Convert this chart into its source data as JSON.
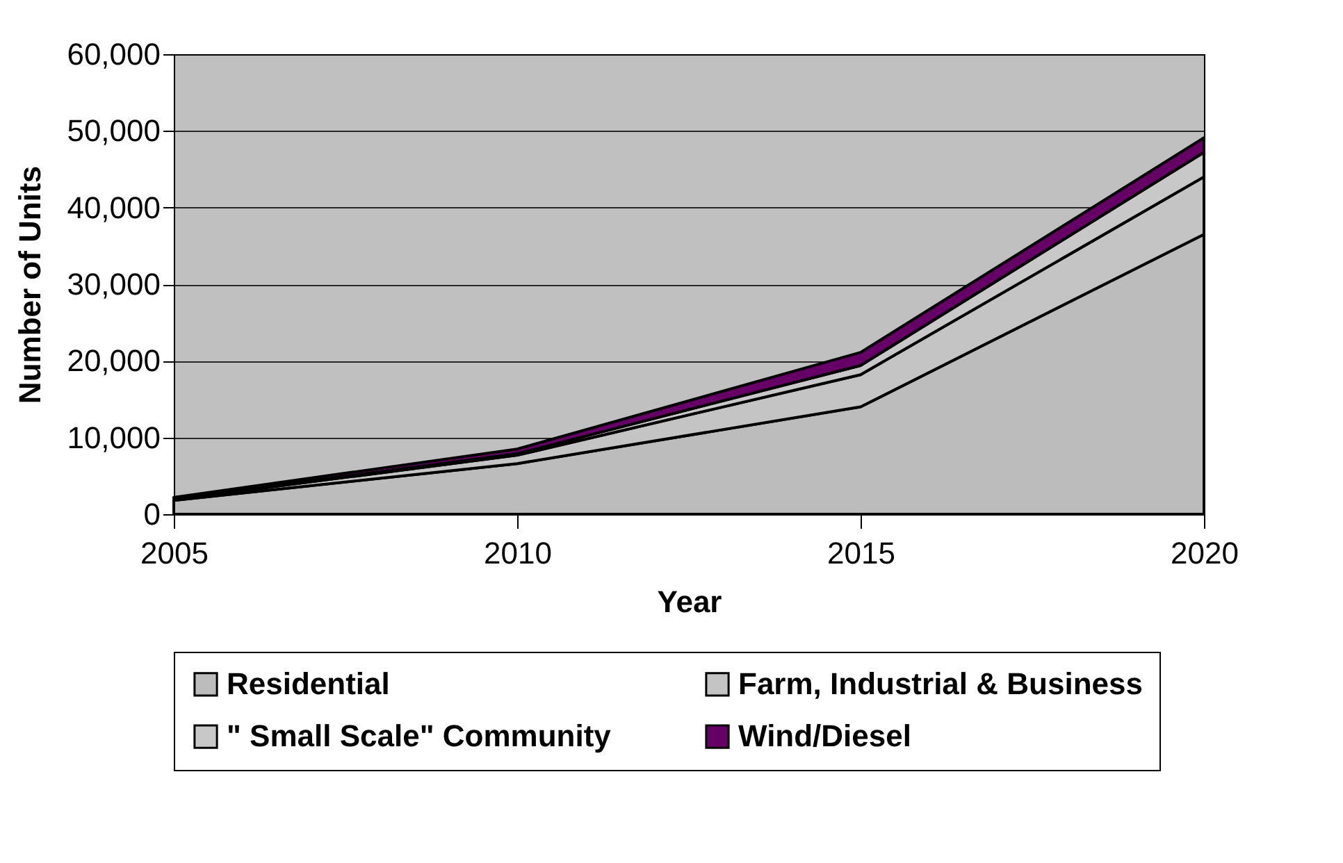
{
  "chart_data": {
    "type": "area",
    "stacked": true,
    "xlabel": "Year",
    "ylabel": "Number of Units",
    "x": [
      2005,
      2010,
      2015,
      2020
    ],
    "xlim": [
      2005,
      2020
    ],
    "xticks": [
      2005,
      2010,
      2015,
      2020
    ],
    "ylim": [
      0,
      60000
    ],
    "yticks": [
      {
        "value": 0,
        "label": "0"
      },
      {
        "value": 10000,
        "label": "10,000"
      },
      {
        "value": 20000,
        "label": "20,000"
      },
      {
        "value": 30000,
        "label": "30,000"
      },
      {
        "value": 40000,
        "label": "40,000"
      },
      {
        "value": 50000,
        "label": "50,000"
      },
      {
        "value": 60000,
        "label": "60,000"
      }
    ],
    "grid": "y",
    "legend": "bottom",
    "series": [
      {
        "name": "Residential",
        "color": "#bcbcbc",
        "values": [
          1800,
          6600,
          14000,
          36500
        ]
      },
      {
        "name": "Farm, Industrial & Business",
        "color": "#c4c4c4",
        "values": [
          100,
          1100,
          4200,
          7500
        ]
      },
      {
        "name": "\" Small Scale\" Community",
        "color": "#c8c8c8",
        "values": [
          100,
          200,
          1200,
          3200
        ]
      },
      {
        "name": "Wind/Diesel",
        "color": "#660066",
        "values": [
          200,
          600,
          1700,
          1900
        ]
      }
    ]
  }
}
